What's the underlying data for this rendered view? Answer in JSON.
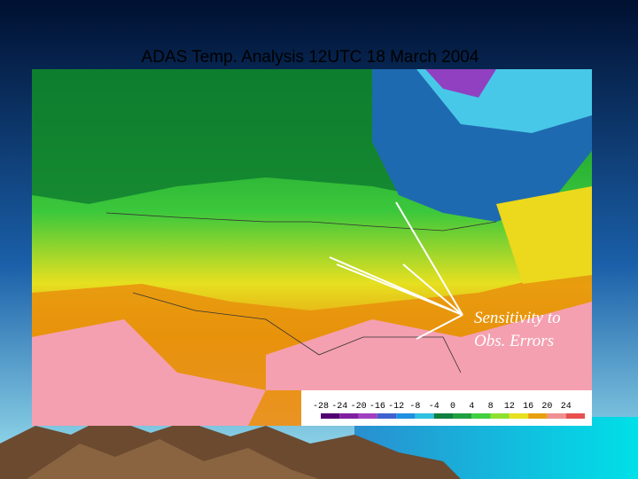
{
  "title": "ADAS Temp. Analysis 12UTC 18 March 2004",
  "annotation": [
    "Sensitivity to",
    "Obs. Errors"
  ],
  "colorbar": {
    "labels": [
      -28,
      -24,
      -20,
      -16,
      -12,
      -8,
      -4,
      0,
      4,
      8,
      12,
      16,
      20,
      24
    ]
  }
}
